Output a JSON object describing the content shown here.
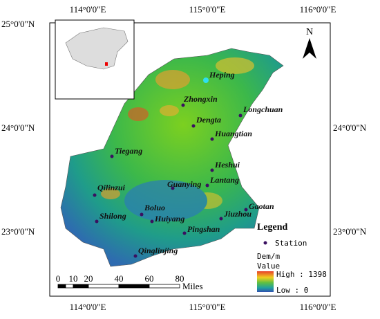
{
  "map": {
    "top_labels": [
      "114°0'0\"E",
      "115°0'0\"E",
      "116°0'0\"E"
    ],
    "bottom_labels": [
      "114°0'0\"E",
      "115°0'0\"E",
      "116°0'0\"E"
    ],
    "left_labels": [
      "25°0'0\"N",
      "24°0'0\"N",
      "23°0'0\"N"
    ],
    "right_labels": [
      "24°0'0\"N",
      "23°0'0\"N"
    ],
    "north": "N",
    "stations": [
      "Heping",
      "Zhongxin",
      "Longchuan",
      "Dengta",
      "Huangtian",
      "Tiegang",
      "Heshui",
      "Lantang",
      "Guanying",
      "Qilinzui",
      "Gaotan",
      "Jiuzhou",
      "Boluo",
      "Shilong",
      "Huiyang",
      "Pingshan",
      "Qinglinjing"
    ],
    "legend": {
      "title": "Legend",
      "station": "Station",
      "unit": "Dem/m",
      "value": "Value",
      "high": "High : 1398",
      "low": "Low : 0"
    },
    "scale": {
      "ticks": [
        "0",
        "10",
        "20",
        "40",
        "60",
        "80"
      ],
      "unit": "Miles"
    }
  }
}
